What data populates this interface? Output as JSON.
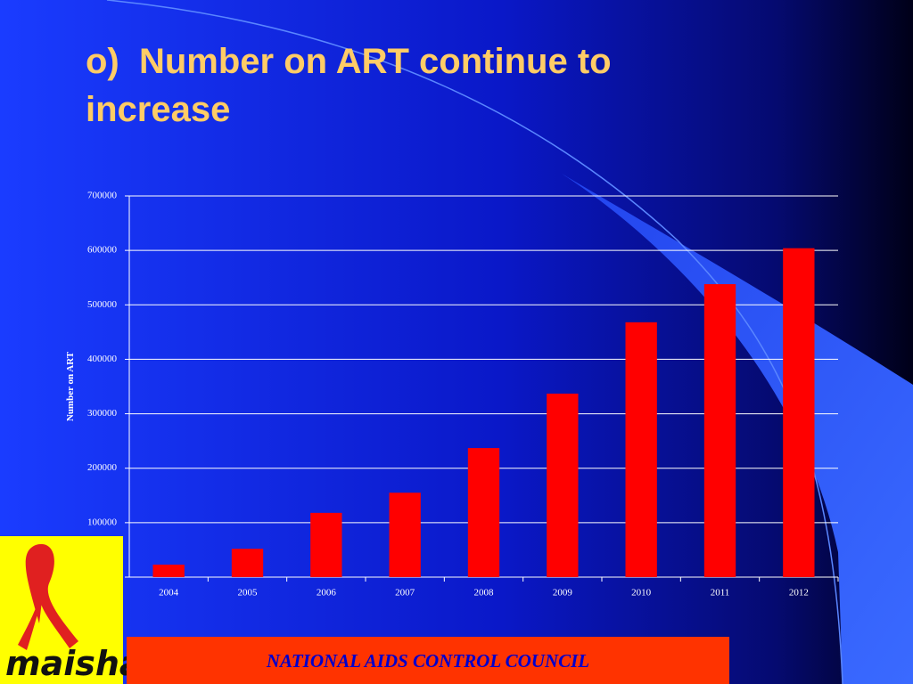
{
  "chart_data": {
    "type": "bar",
    "title": "o)  Number on ART continue to increase",
    "y_label": "Number on ART",
    "categories": [
      "2004",
      "2005",
      "2006",
      "2007",
      "2008",
      "2009",
      "2010",
      "2011",
      "2012"
    ],
    "values": [
      23000,
      52000,
      118000,
      155000,
      237000,
      337000,
      468000,
      538000,
      604000
    ],
    "color": "#ff0000",
    "ylim": [
      0,
      700000
    ],
    "yticks": [
      0,
      100000,
      200000,
      300000,
      400000,
      500000,
      600000,
      700000
    ],
    "grid": true
  },
  "footer": "NATIONAL AIDS CONTROL COUNCIL",
  "logo_text": "maisha!"
}
